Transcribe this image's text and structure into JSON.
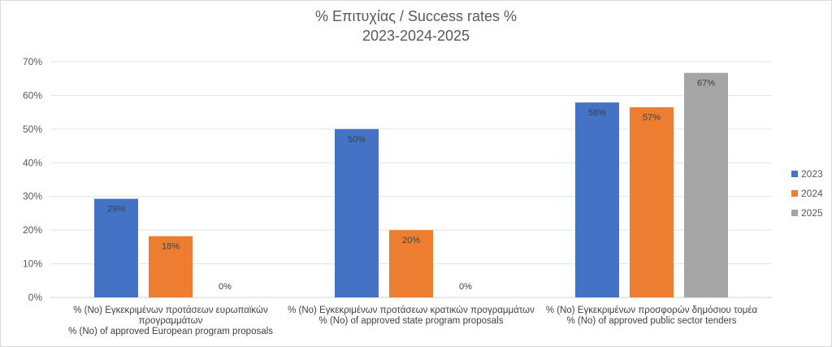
{
  "chart_data": {
    "type": "bar",
    "title_lines": [
      "% Επιτυχίας / Success rates %",
      "2023-2024-2025"
    ],
    "categories": [
      [
        "% (No) Εγκεκριμένων προτάσεων ευρωπαϊκών",
        "προγραμμάτων",
        "% (No) of approved European program proposals"
      ],
      [
        "% (No) Εγκεκριμένων προτάσεων κρατικών προγραμμάτων",
        "% (No) of approved state program proposals"
      ],
      [
        "% (No) Εγκεκριμένων προσφορών δημόσιου τομέα",
        "% (No) of approved public sector tenders"
      ]
    ],
    "series": [
      {
        "name": "2023",
        "color": "#4472c4",
        "values": [
          29.3,
          50,
          57.9
        ],
        "labels": [
          "29%",
          "50%",
          "58%"
        ]
      },
      {
        "name": "2024",
        "color": "#ed7d31",
        "values": [
          18.2,
          20,
          56.5
        ],
        "labels": [
          "18%",
          "20%",
          "57%"
        ]
      },
      {
        "name": "2025",
        "color": "#a5a5a5",
        "values": [
          0,
          0,
          66.7
        ],
        "labels": [
          "0%",
          "0%",
          "67%"
        ]
      }
    ],
    "ylim": [
      0,
      70
    ],
    "yticks": [
      0,
      10,
      20,
      30,
      40,
      50,
      60,
      70
    ],
    "ytick_labels": [
      "0%",
      "10%",
      "20%",
      "30%",
      "40%",
      "50%",
      "60%",
      "70%"
    ],
    "grid": true,
    "legend_position": "right"
  }
}
